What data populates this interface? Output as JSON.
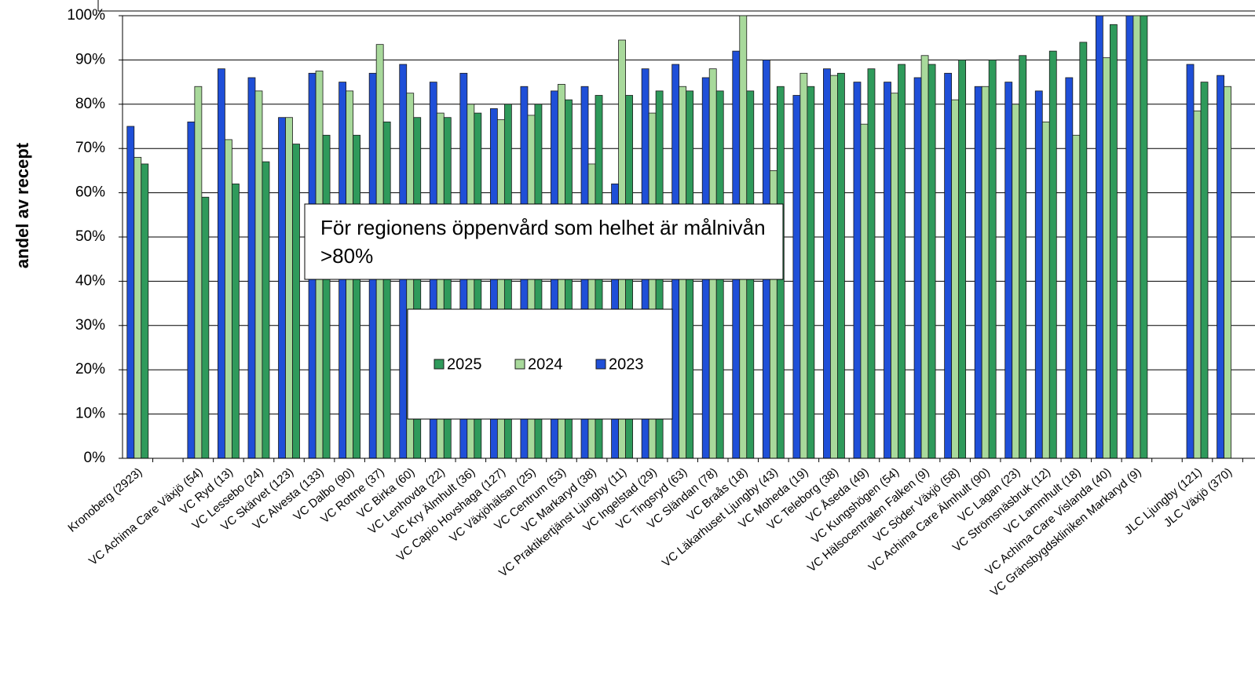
{
  "chart_data": {
    "type": "bar",
    "y_label": "andel av recept",
    "annotation": "För regionens öppenvård som helhet är målnivån >80%",
    "categories": [
      "Kronoberg (2923)",
      null,
      "VC Achima Care Växjö (54)",
      "VC Ryd (13)",
      "VC Lessebo (24)",
      "VC Skärvet (123)",
      "VC Alvesta (133)",
      "VC Dalbo (90)",
      "VC Rottne (37)",
      "VC Birka (60)",
      "VC Lenhovda (22)",
      "VC Kry Älmhult (36)",
      "VC Capio Hovshaga (127)",
      "VC Växjöhälsan (25)",
      "VC Centrum (53)",
      "VC Markaryd (38)",
      "VC Praktikertjänst Ljungby (11)",
      "VC Ingelstad (29)",
      "VC Tingsryd (63)",
      "VC Sländan (78)",
      "VC Braås (18)",
      "VC Läkarhuset Ljungby (43)",
      "VC Moheda (19)",
      "VC Teleborg (38)",
      "VC Åseda (49)",
      "VC Kungshögen (54)",
      "VC Hälsocentralen Falken (9)",
      "VC Söder Växjö (58)",
      "VC Achima Care Älmhult (90)",
      "VC Lagan (23)",
      "VC Strömsnäsbruk (12)",
      "VC Lammhult (18)",
      "VC Achima Care Vislanda (40)",
      "VC Gränsbygdskliniken Markaryd (9)",
      null,
      "JLC Ljungby (121)",
      "JLC Växjö (370)"
    ],
    "series": [
      {
        "name": "2023",
        "color": "#1f4fd8",
        "values": [
          75,
          null,
          76,
          88,
          86,
          77,
          87,
          85,
          87,
          89,
          85,
          87,
          79,
          84,
          83,
          84,
          62,
          88,
          89,
          86,
          92,
          90,
          82,
          88,
          85,
          85,
          86,
          87,
          84,
          85,
          83,
          86,
          100,
          100,
          null,
          89,
          86.5
        ]
      },
      {
        "name": "2024",
        "color": "#a8d99b",
        "values": [
          68,
          null,
          84,
          72,
          83,
          77,
          87.5,
          83,
          93.5,
          82.5,
          78,
          80,
          76.5,
          77.5,
          84.5,
          66.5,
          94.5,
          78,
          84,
          88,
          100,
          65,
          87,
          86.5,
          75.5,
          82.5,
          91,
          81,
          84,
          80,
          76,
          73,
          90.5,
          100,
          null,
          78.5,
          84
        ]
      },
      {
        "name": "2025",
        "color": "#2f9a5b",
        "values": [
          66.5,
          null,
          59,
          62,
          67,
          71,
          73,
          73,
          76,
          77,
          77,
          78,
          80,
          80,
          81,
          82,
          82,
          83,
          83,
          83,
          83,
          84,
          84,
          87,
          88,
          89,
          89,
          90,
          90,
          91,
          92,
          94,
          98,
          100,
          null,
          85,
          null
        ]
      }
    ],
    "ylim": [
      0,
      100
    ],
    "yticks": [
      {
        "value": 0,
        "label": "0%"
      },
      {
        "value": 10,
        "label": "10%"
      },
      {
        "value": 20,
        "label": "20%"
      },
      {
        "value": 30,
        "label": "30%"
      },
      {
        "value": 40,
        "label": "40%"
      },
      {
        "value": 50,
        "label": "50%"
      },
      {
        "value": 60,
        "label": "60%"
      },
      {
        "value": 70,
        "label": "70%"
      },
      {
        "value": 80,
        "label": "80%"
      },
      {
        "value": 90,
        "label": "90%"
      },
      {
        "value": 100,
        "label": "100%"
      }
    ],
    "grid": true
  }
}
